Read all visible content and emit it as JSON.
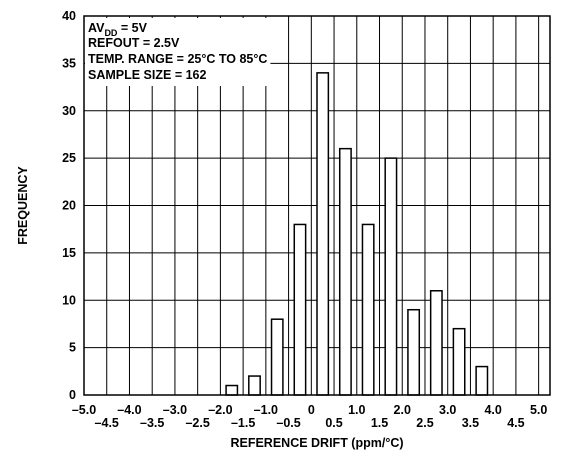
{
  "chart_data": {
    "type": "bar",
    "ylabel": "FREQUENCY",
    "xlabel": "REFERENCE DRIFT (ppm/°C)",
    "xlim": [
      -5.0,
      5.25
    ],
    "ylim": [
      0,
      40
    ],
    "y_ticks": [
      "0",
      "5",
      "10",
      "15",
      "20",
      "25",
      "30",
      "35",
      "40"
    ],
    "x_ticks_upper": [
      "–5.0",
      "–4.0",
      "–3.0",
      "–2.0",
      "–1.0",
      "0",
      "1.0",
      "2.0",
      "3.0",
      "4.0",
      "5.0"
    ],
    "x_ticks_lower": [
      "–4.5",
      "–3.5",
      "–2.5",
      "–1.5",
      "–0.5",
      "0.5",
      "1.5",
      "2.5",
      "3.5",
      "4.5"
    ],
    "grid": true,
    "annotation": {
      "line1_prefix": "AV",
      "line1_sub": "DD",
      "line1_suffix": " = 5V",
      "line2": "REFOUT = 2.5V",
      "line3": "TEMP. RANGE = 25°C TO 85°C",
      "line4": "SAMPLE SIZE = 162"
    },
    "bins": [
      -1.75,
      -1.25,
      -0.75,
      -0.25,
      0.25,
      0.75,
      1.25,
      1.75,
      2.25,
      2.75,
      3.25,
      3.75
    ],
    "values": [
      1,
      2,
      8,
      18,
      34,
      26,
      18,
      25,
      9,
      11,
      7,
      3
    ]
  }
}
